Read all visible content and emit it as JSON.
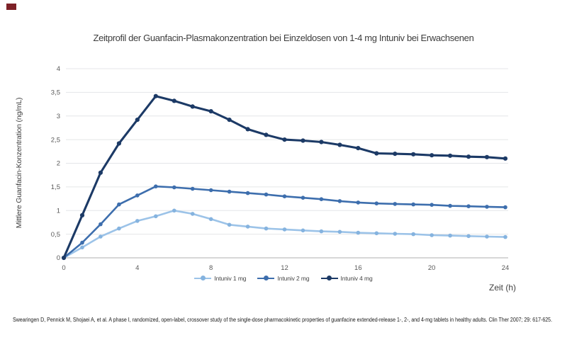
{
  "title": "Zeitprofil der Guanfacin-Plasmakonzentration bei Einzeldosen von 1-4 mg Intuniv bei Erwachsenen",
  "brand_mark_color": "#7d2127",
  "chart_data": {
    "type": "line",
    "title": "Zeitprofil der Guanfacin-Plasmakonzentration bei Einzeldosen von 1-4 mg Intuniv bei Erwachsenen",
    "xlabel": "Zeit (h)",
    "ylabel": "Mittlere Guanfacin-Konzentration (ng/mL)",
    "xlim": [
      0,
      24
    ],
    "ylim": [
      0,
      4
    ],
    "grid": true,
    "legend_position": "bottom",
    "xticks": [
      0,
      4,
      8,
      12,
      16,
      20,
      24
    ],
    "yticks": [
      0,
      0.5,
      1,
      1.5,
      2,
      2.5,
      3,
      3.5,
      4
    ],
    "ytick_labels": [
      "0",
      "0,5",
      "1",
      "1,5",
      "2",
      "2,5",
      "3",
      "3,5",
      "4"
    ],
    "x": [
      0,
      1,
      2,
      3,
      4,
      5,
      6,
      7,
      8,
      9,
      10,
      11,
      12,
      13,
      14,
      15,
      16,
      17,
      18,
      19,
      20,
      21,
      22,
      23,
      24
    ],
    "series": [
      {
        "name": "Intuniv 1 mg",
        "color": "#9CC3E8",
        "marker_color": "#85B3DF",
        "values": [
          0,
          0.22,
          0.45,
          0.62,
          0.78,
          0.88,
          1.0,
          0.93,
          0.82,
          0.7,
          0.66,
          0.62,
          0.6,
          0.58,
          0.56,
          0.55,
          0.53,
          0.52,
          0.51,
          0.5,
          0.48,
          0.47,
          0.46,
          0.45,
          0.44
        ]
      },
      {
        "name": "Intuniv 2 mg",
        "color": "#3D6EAD",
        "marker_color": "#3D6EAD",
        "values": [
          0,
          0.32,
          0.71,
          1.13,
          1.32,
          1.51,
          1.49,
          1.46,
          1.43,
          1.4,
          1.37,
          1.34,
          1.3,
          1.27,
          1.24,
          1.2,
          1.17,
          1.15,
          1.14,
          1.13,
          1.12,
          1.1,
          1.09,
          1.08,
          1.07
        ]
      },
      {
        "name": "Intuniv 4 mg",
        "color": "#1C3A66",
        "marker_color": "#1C3A66",
        "values": [
          0,
          0.9,
          1.8,
          2.42,
          2.92,
          3.42,
          3.32,
          3.2,
          3.1,
          2.92,
          2.72,
          2.6,
          2.5,
          2.48,
          2.45,
          2.39,
          2.32,
          2.21,
          2.2,
          2.19,
          2.17,
          2.16,
          2.14,
          2.13,
          2.1
        ]
      }
    ],
    "colors": {
      "grid": "#e4e6e8",
      "axis": "#bfbfbf",
      "tick_text": "#595959"
    }
  },
  "footer": {
    "citation": "Swearingen D, Pennick M, Shojaei A, et al. A phase I, randomized, open-label, crossover study of the single-dose pharmacokinetic properties of guanfacine extended-release 1-, 2-, and 4-mg tablets in healthy adults. Clin Ther 2007; 29: 617-625."
  }
}
